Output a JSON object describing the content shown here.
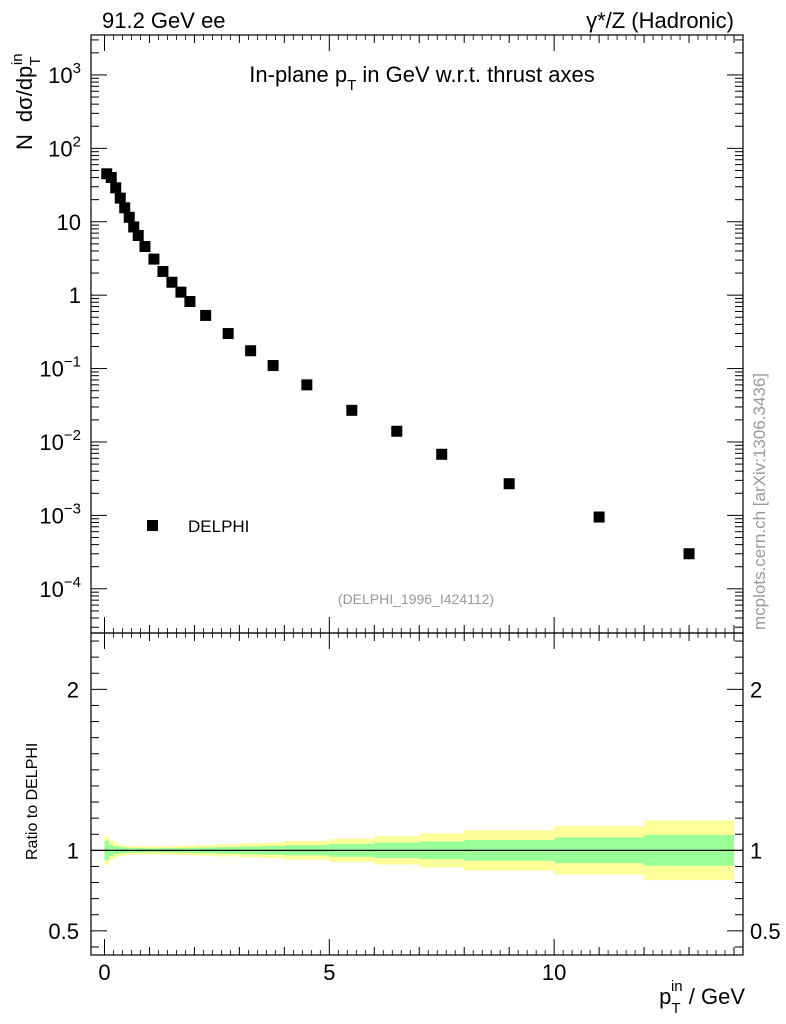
{
  "header": {
    "left": "91.2 GeV ee",
    "right": "γ*/Z (Hadronic)"
  },
  "side_label": "mcplots.cern.ch [arXiv:1306.3436]",
  "colors": {
    "band_inner": "#99ff99",
    "band_outer": "#ffff99",
    "marker": "#000000",
    "axis": "#000000",
    "watermark": "#999999"
  },
  "chart_data": [
    {
      "panel": "main",
      "type": "scatter",
      "title": "In-plane p_T in GeV w.r.t. thrust axes",
      "title_parts": {
        "main": "In-plane p",
        "sub": "T",
        "rest": " in GeV w.r.t. thrust axes"
      },
      "ylabel_parts": {
        "n": "N",
        "dsigma": "dσ/dp",
        "sub": "T",
        "sup": "in"
      },
      "yscale": "log",
      "xlim": [
        -0.3,
        14.2
      ],
      "ylim": [
        2.5e-05,
        3500
      ],
      "yticks": [
        {
          "value": 0.0001,
          "base": "10",
          "exp": "−4"
        },
        {
          "value": 0.001,
          "base": "10",
          "exp": "−3"
        },
        {
          "value": 0.01,
          "base": "10",
          "exp": "−2"
        },
        {
          "value": 0.1,
          "base": "10",
          "exp": "−1"
        },
        {
          "value": 1,
          "base": "1",
          "exp": ""
        },
        {
          "value": 10,
          "base": "10",
          "exp": ""
        },
        {
          "value": 100,
          "base": "10",
          "exp": "2"
        },
        {
          "value": 1000,
          "base": "10",
          "exp": "3"
        }
      ],
      "legend": {
        "label": "DELPHI",
        "position": "bottom-left"
      },
      "watermark": "(DELPHI_1996_I424112)",
      "series": [
        {
          "name": "DELPHI",
          "x": [
            0.05,
            0.15,
            0.25,
            0.35,
            0.45,
            0.55,
            0.65,
            0.75,
            0.9,
            1.1,
            1.3,
            1.5,
            1.7,
            1.9,
            2.25,
            2.75,
            3.25,
            3.75,
            4.5,
            5.5,
            6.5,
            7.5,
            9.0,
            11.0,
            13.0
          ],
          "y": [
            45,
            40,
            29,
            21,
            15.5,
            11.5,
            8.5,
            6.5,
            4.6,
            3.1,
            2.1,
            1.5,
            1.1,
            0.82,
            0.53,
            0.3,
            0.175,
            0.11,
            0.06,
            0.027,
            0.014,
            0.0068,
            0.0027,
            0.00095,
            0.0003
          ]
        }
      ]
    },
    {
      "panel": "ratio",
      "type": "area",
      "ylabel": "Ratio to DELPHI",
      "xlabel_parts": {
        "p": "p",
        "sub": "T",
        "sup": "in",
        "rest": " / GeV"
      },
      "xlim": [
        -0.3,
        14.2
      ],
      "ylim": [
        0.35,
        2.35
      ],
      "xticks": [
        0,
        5,
        10
      ],
      "yticks": [
        0.5,
        1,
        2
      ],
      "reference_line": 1,
      "bins": [
        [
          0.0,
          0.1
        ],
        [
          0.1,
          0.2
        ],
        [
          0.2,
          0.3
        ],
        [
          0.3,
          0.4
        ],
        [
          0.4,
          0.5
        ],
        [
          0.5,
          0.6
        ],
        [
          0.6,
          0.7
        ],
        [
          0.7,
          0.8
        ],
        [
          0.8,
          1.0
        ],
        [
          1.0,
          1.2
        ],
        [
          1.2,
          1.4
        ],
        [
          1.4,
          1.6
        ],
        [
          1.6,
          1.8
        ],
        [
          1.8,
          2.0
        ],
        [
          2.0,
          2.5
        ],
        [
          2.5,
          3.0
        ],
        [
          3.0,
          3.5
        ],
        [
          3.5,
          4.0
        ],
        [
          4.0,
          5.0
        ],
        [
          5.0,
          6.0
        ],
        [
          6.0,
          7.0
        ],
        [
          7.0,
          8.0
        ],
        [
          8.0,
          10.0
        ],
        [
          10.0,
          12.0
        ],
        [
          12.0,
          14.0
        ]
      ],
      "stat_band": [
        0.06,
        0.035,
        0.025,
        0.02,
        0.018,
        0.016,
        0.015,
        0.014,
        0.013,
        0.013,
        0.013,
        0.014,
        0.015,
        0.016,
        0.018,
        0.021,
        0.024,
        0.027,
        0.032,
        0.04,
        0.048,
        0.055,
        0.065,
        0.08,
        0.095
      ],
      "total_band": [
        0.09,
        0.06,
        0.045,
        0.035,
        0.03,
        0.028,
        0.027,
        0.026,
        0.025,
        0.025,
        0.026,
        0.027,
        0.028,
        0.03,
        0.033,
        0.038,
        0.043,
        0.048,
        0.058,
        0.072,
        0.088,
        0.105,
        0.125,
        0.15,
        0.185
      ]
    }
  ]
}
